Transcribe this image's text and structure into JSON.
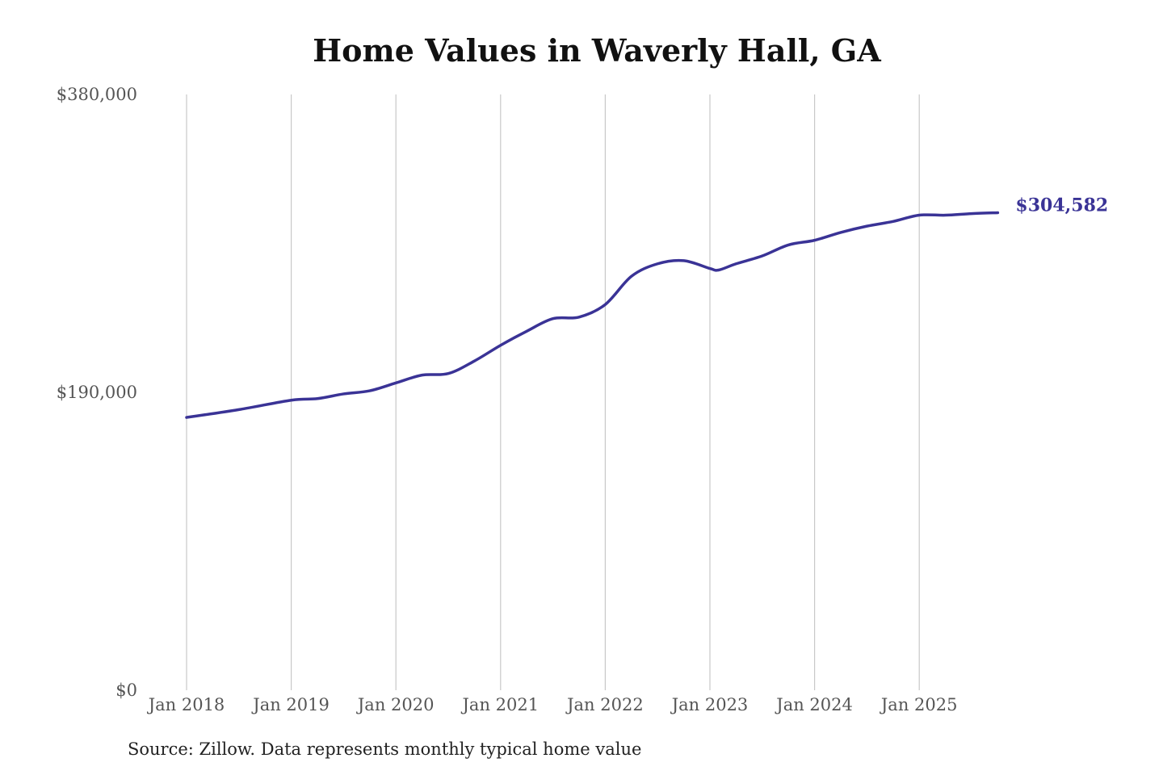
{
  "chart_data": {
    "type": "line",
    "title": "Home Values in Waverly Hall, GA",
    "source": "Source: Zillow. Data represents monthly typical home value",
    "xlabel": "",
    "ylabel": "",
    "ylim": [
      0,
      380000
    ],
    "yticks": [
      0,
      190000,
      380000
    ],
    "ytick_labels": [
      "$0",
      "$190,000",
      "$380,000"
    ],
    "xticks": [
      "2018-01",
      "2019-01",
      "2020-01",
      "2021-01",
      "2022-01",
      "2023-01",
      "2024-01",
      "2025-01"
    ],
    "xtick_labels": [
      "Jan 2018",
      "Jan 2019",
      "Jan 2020",
      "Jan 2021",
      "Jan 2022",
      "Jan 2023",
      "Jan 2024",
      "Jan 2025"
    ],
    "grid": "vertical",
    "line_color": "#3a3396",
    "end_label": "$304,582",
    "series": [
      {
        "x": [
          "2018-01",
          "2018-07",
          "2019-01",
          "2019-04",
          "2019-07",
          "2019-10",
          "2020-01",
          "2020-04",
          "2020-07",
          "2020-10",
          "2021-01",
          "2021-04",
          "2021-07",
          "2021-10",
          "2022-01",
          "2022-04",
          "2022-07",
          "2022-10",
          "2023-01",
          "2023-02",
          "2023-04",
          "2023-07",
          "2023-10",
          "2024-01",
          "2024-04",
          "2024-07",
          "2024-10",
          "2025-01",
          "2025-04",
          "2025-07",
          "2025-10"
        ],
        "values": [
          174000,
          179000,
          185000,
          186000,
          189000,
          191000,
          196000,
          201000,
          202000,
          210000,
          220000,
          229000,
          237000,
          238000,
          246000,
          264000,
          272000,
          274000,
          269000,
          268000,
          272000,
          277000,
          284000,
          287000,
          292000,
          296000,
          299000,
          303000,
          303000,
          304000,
          304582
        ]
      }
    ]
  }
}
